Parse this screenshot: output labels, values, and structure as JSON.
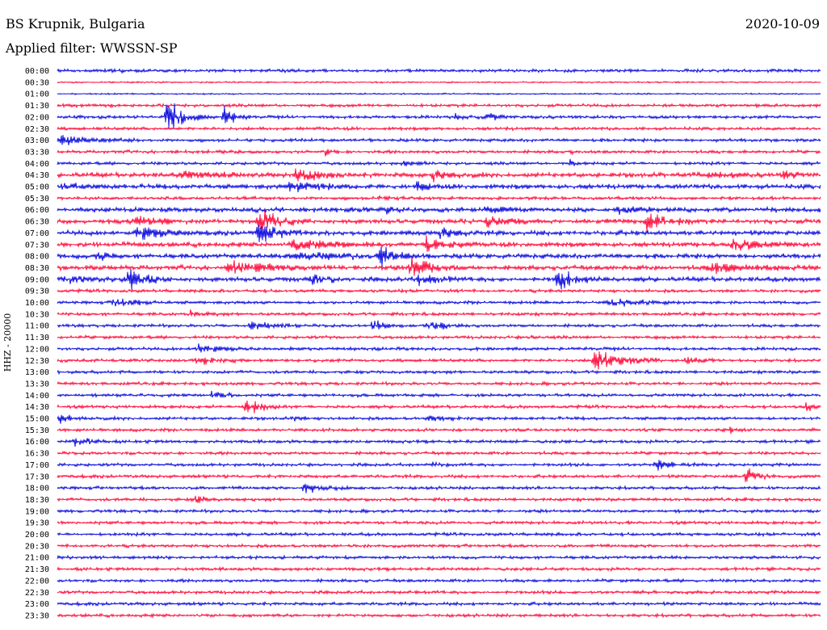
{
  "header": {
    "station": "BS Krupnik, Bulgaria",
    "filter": "Applied filter: WWSSN-SP",
    "date": "2020-10-09"
  },
  "colors": {
    "even_trace": "#0000dd",
    "odd_trace": "#ff0033",
    "text": "#000000"
  },
  "chart_data": {
    "type": "line",
    "title": "BS Krupnik, Bulgaria",
    "subtitle": "Applied filter: WWSSN-SP",
    "ylabel": "HHZ - 20000",
    "xlabel": "",
    "grid": false,
    "legend": "none",
    "row_labels": [
      "00:00",
      "00:30",
      "01:00",
      "01:30",
      "02:00",
      "02:30",
      "03:00",
      "03:30",
      "04:00",
      "04:30",
      "05:00",
      "05:30",
      "06:00",
      "06:30",
      "07:00",
      "07:30",
      "08:00",
      "08:30",
      "09:00",
      "09:30",
      "10:00",
      "10:30",
      "11:00",
      "11:30",
      "12:00",
      "12:30",
      "13:00",
      "13:30",
      "14:00",
      "14:30",
      "15:00",
      "15:30",
      "16:00",
      "16:30",
      "17:00",
      "17:30",
      "18:00",
      "18:30",
      "19:00",
      "19:30",
      "20:00",
      "20:30",
      "21:00",
      "21:30",
      "22:00",
      "22:30",
      "23:00",
      "23:30"
    ],
    "row_color_pattern": [
      "blue",
      "red"
    ],
    "noise_levels": [
      2,
      1,
      1,
      2,
      2,
      2,
      2,
      2,
      2,
      3,
      3,
      2,
      3,
      3,
      3,
      3,
      3,
      3,
      3,
      2,
      2,
      2,
      2,
      2,
      2,
      2,
      2,
      2,
      2,
      2,
      2,
      2,
      2,
      2,
      2,
      2,
      2,
      2,
      2,
      2,
      2,
      2,
      2,
      2,
      2,
      2,
      2,
      2
    ],
    "events": [
      {
        "row": 0,
        "pos": 0.07,
        "amp": 3,
        "dur": 0.03
      },
      {
        "row": 4,
        "pos": 0.14,
        "amp": 28,
        "dur": 0.06
      },
      {
        "row": 4,
        "pos": 0.215,
        "amp": 18,
        "dur": 0.04
      },
      {
        "row": 4,
        "pos": 0.52,
        "amp": 5,
        "dur": 0.03
      },
      {
        "row": 4,
        "pos": 0.56,
        "amp": 8,
        "dur": 0.04
      },
      {
        "row": 6,
        "pos": 0.0,
        "amp": 8,
        "dur": 0.11
      },
      {
        "row": 7,
        "pos": 0.35,
        "amp": 6,
        "dur": 0.02
      },
      {
        "row": 7,
        "pos": 0.67,
        "amp": 3,
        "dur": 0.03
      },
      {
        "row": 8,
        "pos": 0.45,
        "amp": 4,
        "dur": 0.05
      },
      {
        "row": 8,
        "pos": 0.67,
        "amp": 5,
        "dur": 0.02
      },
      {
        "row": 9,
        "pos": 0.16,
        "amp": 5,
        "dur": 0.1
      },
      {
        "row": 9,
        "pos": 0.31,
        "amp": 10,
        "dur": 0.08
      },
      {
        "row": 9,
        "pos": 0.49,
        "amp": 9,
        "dur": 0.05
      },
      {
        "row": 9,
        "pos": 0.85,
        "amp": 5,
        "dur": 0.06
      },
      {
        "row": 9,
        "pos": 0.95,
        "amp": 6,
        "dur": 0.04
      },
      {
        "row": 10,
        "pos": 0.0,
        "amp": 4,
        "dur": 0.08
      },
      {
        "row": 10,
        "pos": 0.3,
        "amp": 8,
        "dur": 0.12
      },
      {
        "row": 10,
        "pos": 0.47,
        "amp": 8,
        "dur": 0.04
      },
      {
        "row": 11,
        "pos": 0.42,
        "amp": 4,
        "dur": 0.04
      },
      {
        "row": 12,
        "pos": 0.43,
        "amp": 6,
        "dur": 0.03
      },
      {
        "row": 12,
        "pos": 0.55,
        "amp": 5,
        "dur": 0.08
      },
      {
        "row": 12,
        "pos": 0.73,
        "amp": 4,
        "dur": 0.08
      },
      {
        "row": 13,
        "pos": 0.1,
        "amp": 8,
        "dur": 0.07
      },
      {
        "row": 13,
        "pos": 0.26,
        "amp": 20,
        "dur": 0.07
      },
      {
        "row": 13,
        "pos": 0.56,
        "amp": 7,
        "dur": 0.07
      },
      {
        "row": 13,
        "pos": 0.77,
        "amp": 18,
        "dur": 0.07
      },
      {
        "row": 14,
        "pos": 0.1,
        "amp": 12,
        "dur": 0.09
      },
      {
        "row": 14,
        "pos": 0.26,
        "amp": 18,
        "dur": 0.06
      },
      {
        "row": 14,
        "pos": 0.5,
        "amp": 10,
        "dur": 0.05
      },
      {
        "row": 15,
        "pos": 0.3,
        "amp": 8,
        "dur": 0.15
      },
      {
        "row": 15,
        "pos": 0.48,
        "amp": 16,
        "dur": 0.06
      },
      {
        "row": 15,
        "pos": 0.88,
        "amp": 10,
        "dur": 0.1
      },
      {
        "row": 16,
        "pos": 0.05,
        "amp": 12,
        "dur": 0.03
      },
      {
        "row": 16,
        "pos": 0.3,
        "amp": 5,
        "dur": 0.2
      },
      {
        "row": 16,
        "pos": 0.42,
        "amp": 18,
        "dur": 0.05
      },
      {
        "row": 17,
        "pos": 0.22,
        "amp": 8,
        "dur": 0.14
      },
      {
        "row": 17,
        "pos": 0.46,
        "amp": 18,
        "dur": 0.07
      },
      {
        "row": 17,
        "pos": 0.85,
        "amp": 8,
        "dur": 0.14
      },
      {
        "row": 18,
        "pos": 0.0,
        "amp": 6,
        "dur": 0.1
      },
      {
        "row": 18,
        "pos": 0.09,
        "amp": 18,
        "dur": 0.06
      },
      {
        "row": 18,
        "pos": 0.33,
        "amp": 8,
        "dur": 0.06
      },
      {
        "row": 18,
        "pos": 0.47,
        "amp": 10,
        "dur": 0.06
      },
      {
        "row": 18,
        "pos": 0.65,
        "amp": 18,
        "dur": 0.07
      },
      {
        "row": 20,
        "pos": 0.07,
        "amp": 7,
        "dur": 0.08
      },
      {
        "row": 20,
        "pos": 0.72,
        "amp": 5,
        "dur": 0.12
      },
      {
        "row": 21,
        "pos": 0.17,
        "amp": 5,
        "dur": 0.04
      },
      {
        "row": 22,
        "pos": 0.25,
        "amp": 7,
        "dur": 0.07
      },
      {
        "row": 22,
        "pos": 0.41,
        "amp": 10,
        "dur": 0.05
      },
      {
        "row": 22,
        "pos": 0.48,
        "amp": 10,
        "dur": 0.06
      },
      {
        "row": 23,
        "pos": 0.62,
        "amp": 4,
        "dur": 0.02
      },
      {
        "row": 24,
        "pos": 0.18,
        "amp": 9,
        "dur": 0.07
      },
      {
        "row": 25,
        "pos": 0.18,
        "amp": 8,
        "dur": 0.07
      },
      {
        "row": 25,
        "pos": 0.7,
        "amp": 18,
        "dur": 0.09
      },
      {
        "row": 25,
        "pos": 0.82,
        "amp": 5,
        "dur": 0.05
      },
      {
        "row": 28,
        "pos": 0.2,
        "amp": 6,
        "dur": 0.05
      },
      {
        "row": 29,
        "pos": 0.24,
        "amp": 22,
        "dur": 0.05
      },
      {
        "row": 29,
        "pos": 0.98,
        "amp": 10,
        "dur": 0.02
      },
      {
        "row": 30,
        "pos": 0.0,
        "amp": 8,
        "dur": 0.04
      },
      {
        "row": 30,
        "pos": 0.31,
        "amp": 7,
        "dur": 0.02
      },
      {
        "row": 30,
        "pos": 0.48,
        "amp": 4,
        "dur": 0.1
      },
      {
        "row": 31,
        "pos": 0.88,
        "amp": 5,
        "dur": 0.03
      },
      {
        "row": 32,
        "pos": 0.02,
        "amp": 7,
        "dur": 0.06
      },
      {
        "row": 34,
        "pos": 0.49,
        "amp": 3,
        "dur": 0.03
      },
      {
        "row": 34,
        "pos": 0.78,
        "amp": 9,
        "dur": 0.06
      },
      {
        "row": 35,
        "pos": 0.9,
        "amp": 14,
        "dur": 0.04
      },
      {
        "row": 36,
        "pos": 0.32,
        "amp": 9,
        "dur": 0.07
      },
      {
        "row": 37,
        "pos": 0.18,
        "amp": 9,
        "dur": 0.03
      }
    ]
  }
}
